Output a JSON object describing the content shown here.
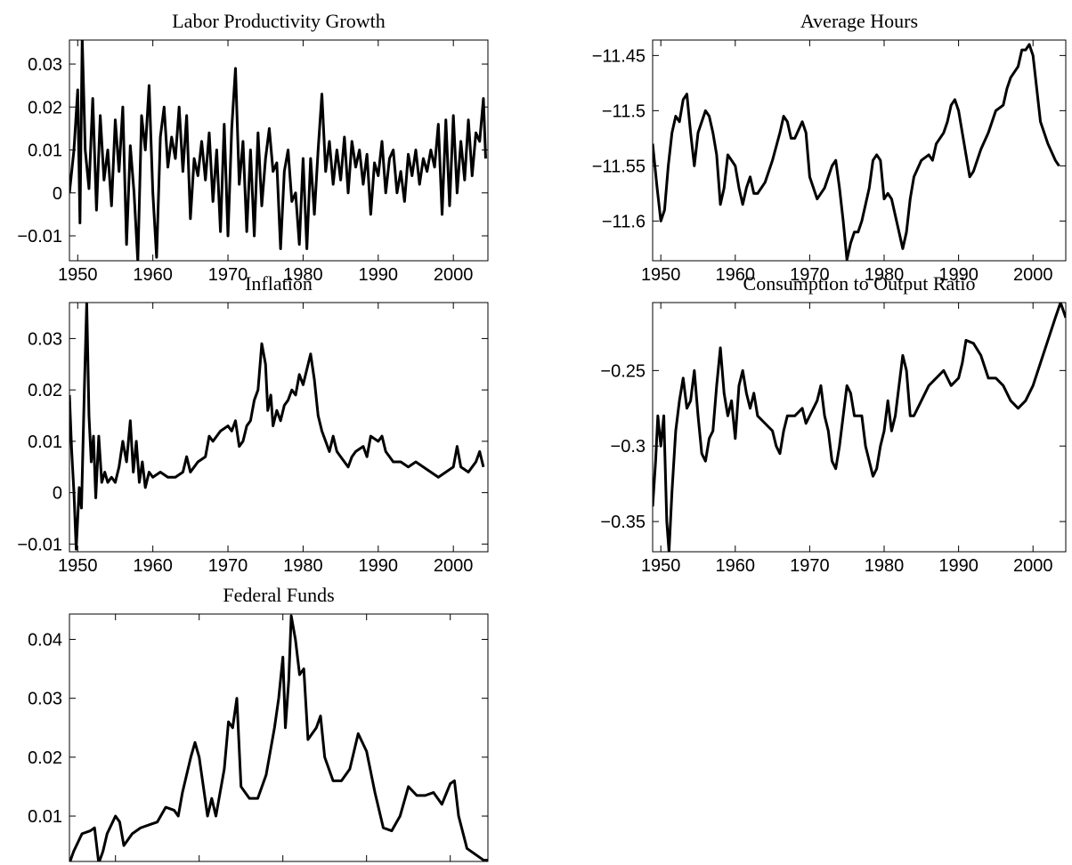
{
  "chart_data": [
    {
      "type": "line",
      "title": "Labor Productivity Growth",
      "color": "#000000",
      "x": [
        1948.9,
        1949.5,
        1950,
        1950.3,
        1950.6,
        1951,
        1951.5,
        1952,
        1952.5,
        1953,
        1953.5,
        1954,
        1954.5,
        1955,
        1955.5,
        1956,
        1956.5,
        1957,
        1957.5,
        1958,
        1958.5,
        1959,
        1959.5,
        1960,
        1960.5,
        1961,
        1961.5,
        1962,
        1962.5,
        1963,
        1963.5,
        1964,
        1964.5,
        1965,
        1965.5,
        1966,
        1966.5,
        1967,
        1967.5,
        1968,
        1968.5,
        1969,
        1969.5,
        1970,
        1970.5,
        1971,
        1971.5,
        1972,
        1972.5,
        1973,
        1973.5,
        1974,
        1974.5,
        1975,
        1975.5,
        1976,
        1976.5,
        1977,
        1977.5,
        1978,
        1978.5,
        1979,
        1979.5,
        1980,
        1980.5,
        1981,
        1981.5,
        1982,
        1982.5,
        1983,
        1983.5,
        1984,
        1984.5,
        1985,
        1985.5,
        1986,
        1986.5,
        1987,
        1987.5,
        1988,
        1988.5,
        1989,
        1989.5,
        1990,
        1990.5,
        1991,
        1991.5,
        1992,
        1992.5,
        1993,
        1993.5,
        1994,
        1994.5,
        1995,
        1995.5,
        1996,
        1996.5,
        1997,
        1997.5,
        1998,
        1998.5,
        1999,
        1999.5,
        2000,
        2000.5,
        2001,
        2001.5,
        2002,
        2002.5,
        2003,
        2003.5,
        2004,
        2004.3
      ],
      "values": [
        0,
        0.01,
        0.024,
        -0.007,
        0.036,
        0.01,
        0.001,
        0.022,
        -0.004,
        0.018,
        0.003,
        0.01,
        -0.003,
        0.017,
        0.005,
        0.02,
        -0.012,
        0.011,
        0,
        -0.016,
        0.018,
        0.01,
        0.025,
        0,
        -0.015,
        0.013,
        0.02,
        0.006,
        0.013,
        0.008,
        0.02,
        0.005,
        0.018,
        -0.006,
        0.008,
        0.004,
        0.012,
        0.003,
        0.014,
        -0.002,
        0.01,
        -0.009,
        0.016,
        -0.01,
        0.015,
        0.029,
        0.002,
        0.012,
        -0.009,
        0.01,
        -0.01,
        0.014,
        -0.003,
        0.008,
        0.015,
        0.005,
        0.007,
        -0.013,
        0.005,
        0.01,
        -0.002,
        0,
        -0.012,
        0.008,
        -0.013,
        0.008,
        -0.005,
        0.01,
        0.023,
        0.005,
        0.012,
        0.002,
        0.01,
        0.003,
        0.013,
        0,
        0.012,
        0.006,
        0.01,
        0.002,
        0.009,
        -0.005,
        0.007,
        0.004,
        0.012,
        0,
        0.008,
        0.01,
        0,
        0.005,
        -0.002,
        0.009,
        0.004,
        0.01,
        0.002,
        0.008,
        0.005,
        0.01,
        0.006,
        0.016,
        -0.005,
        0.017,
        -0.003,
        0.018,
        0,
        0.012,
        0.003,
        0.017,
        0.004,
        0.014,
        0.012,
        0.022,
        0.008
      ],
      "xlim": [
        1948.9,
        2004.6
      ],
      "ylim": [
        -0.0158,
        0.0356
      ],
      "xticks": [
        1950,
        1960,
        1970,
        1980,
        1990,
        2000
      ],
      "yticks": [
        {
          "value": -0.01,
          "label": "−0.01"
        },
        0,
        0.01,
        0.02,
        0.03
      ]
    },
    {
      "type": "line",
      "title": "Average Hours",
      "color": "#000000",
      "x": [
        1948.9,
        1949.5,
        1950,
        1950.5,
        1951,
        1951.5,
        1952,
        1952.5,
        1953,
        1953.5,
        1954,
        1954.5,
        1955,
        1955.5,
        1956,
        1956.5,
        1957,
        1957.5,
        1958,
        1958.5,
        1959,
        1960,
        1960.5,
        1961,
        1961.5,
        1962,
        1962.5,
        1963,
        1964,
        1965,
        1966,
        1966.5,
        1967,
        1967.5,
        1968,
        1969,
        1969.5,
        1970,
        1970.5,
        1971,
        1972,
        1973,
        1973.5,
        1974,
        1974.5,
        1975,
        1975.5,
        1976,
        1976.5,
        1977,
        1978,
        1978.5,
        1979,
        1979.5,
        1980,
        1980.5,
        1981,
        1982,
        1982.5,
        1983,
        1983.5,
        1984,
        1985,
        1986,
        1986.5,
        1987,
        1988,
        1988.5,
        1989,
        1989.5,
        1990,
        1991,
        1991.5,
        1992,
        1993,
        1994,
        1995,
        1996,
        1996.5,
        1997,
        1998,
        1998.5,
        1999,
        1999.5,
        2000,
        2000.5,
        2001,
        2002,
        2003,
        2003.5
      ],
      "values": [
        -11.53,
        -11.57,
        -11.6,
        -11.59,
        -11.55,
        -11.52,
        -11.505,
        -11.51,
        -11.49,
        -11.485,
        -11.52,
        -11.55,
        -11.52,
        -11.51,
        -11.5,
        -11.505,
        -11.52,
        -11.54,
        -11.585,
        -11.57,
        -11.54,
        -11.55,
        -11.57,
        -11.585,
        -11.57,
        -11.56,
        -11.575,
        -11.575,
        -11.565,
        -11.545,
        -11.52,
        -11.505,
        -11.51,
        -11.525,
        -11.525,
        -11.51,
        -11.52,
        -11.56,
        -11.57,
        -11.58,
        -11.57,
        -11.55,
        -11.545,
        -11.57,
        -11.6,
        -11.635,
        -11.62,
        -11.61,
        -11.61,
        -11.6,
        -11.57,
        -11.545,
        -11.54,
        -11.545,
        -11.58,
        -11.575,
        -11.58,
        -11.61,
        -11.625,
        -11.61,
        -11.58,
        -11.56,
        -11.545,
        -11.54,
        -11.545,
        -11.53,
        -11.52,
        -11.51,
        -11.495,
        -11.49,
        -11.5,
        -11.54,
        -11.56,
        -11.555,
        -11.535,
        -11.52,
        -11.5,
        -11.495,
        -11.48,
        -11.47,
        -11.46,
        -11.445,
        -11.445,
        -11.44,
        -11.45,
        -11.48,
        -11.51,
        -11.53,
        -11.545,
        -11.55
      ],
      "xlim": [
        1948.9,
        2004.4
      ],
      "ylim": [
        -11.636,
        -11.436
      ],
      "xticks": [
        1950,
        1960,
        1970,
        1980,
        1990,
        2000
      ],
      "yticks": [
        {
          "value": -11.6,
          "label": "−11.6"
        },
        {
          "value": -11.55,
          "label": "−11.55"
        },
        {
          "value": -11.5,
          "label": "−11.5"
        },
        {
          "value": -11.45,
          "label": "−11.45"
        }
      ]
    },
    {
      "type": "line",
      "title": "Inflation",
      "color": "#000000",
      "x": [
        1948.9,
        1949.2,
        1949.5,
        1949.8,
        1950.2,
        1950.5,
        1950.9,
        1951.2,
        1951.5,
        1951.8,
        1952.1,
        1952.4,
        1952.8,
        1953.2,
        1953.6,
        1954,
        1954.5,
        1955,
        1955.5,
        1956,
        1956.5,
        1957,
        1957.4,
        1957.8,
        1958.2,
        1958.6,
        1959,
        1959.5,
        1960,
        1961,
        1962,
        1963,
        1964,
        1964.5,
        1965,
        1966,
        1967,
        1967.5,
        1968,
        1969,
        1970,
        1970.5,
        1971,
        1971.5,
        1972,
        1972.5,
        1973,
        1973.5,
        1974,
        1974.5,
        1975,
        1975.3,
        1975.7,
        1976,
        1976.5,
        1977,
        1977.5,
        1978,
        1978.5,
        1979,
        1979.5,
        1980,
        1980.5,
        1981,
        1981.5,
        1982,
        1982.5,
        1983,
        1983.5,
        1984,
        1984.5,
        1985,
        1986,
        1986.5,
        1987,
        1988,
        1988.5,
        1989,
        1990,
        1990.5,
        1991,
        1992,
        1993,
        1994,
        1995,
        1996,
        1997,
        1998,
        1999,
        2000,
        2000.5,
        2001,
        2002,
        2003,
        2003.5,
        2004
      ],
      "values": [
        0.019,
        0.008,
        0,
        -0.011,
        0.001,
        -0.003,
        0.021,
        0.037,
        0.015,
        0.006,
        0.011,
        -0.001,
        0.011,
        0.002,
        0.004,
        0.002,
        0.003,
        0.002,
        0.005,
        0.01,
        0.006,
        0.014,
        0.004,
        0.01,
        0.002,
        0.006,
        0.001,
        0.004,
        0.003,
        0.004,
        0.003,
        0.003,
        0.004,
        0.007,
        0.004,
        0.006,
        0.007,
        0.011,
        0.01,
        0.012,
        0.013,
        0.012,
        0.014,
        0.009,
        0.01,
        0.013,
        0.014,
        0.018,
        0.02,
        0.029,
        0.025,
        0.016,
        0.019,
        0.013,
        0.016,
        0.014,
        0.017,
        0.018,
        0.02,
        0.019,
        0.023,
        0.021,
        0.024,
        0.027,
        0.022,
        0.015,
        0.012,
        0.01,
        0.008,
        0.011,
        0.008,
        0.007,
        0.005,
        0.007,
        0.008,
        0.009,
        0.007,
        0.011,
        0.01,
        0.011,
        0.008,
        0.006,
        0.006,
        0.005,
        0.006,
        0.005,
        0.004,
        0.003,
        0.004,
        0.005,
        0.009,
        0.005,
        0.004,
        0.006,
        0.008,
        0.005
      ],
      "xlim": [
        1948.9,
        2004.6
      ],
      "ylim": [
        -0.0115,
        0.037
      ],
      "xticks": [
        1950,
        1960,
        1970,
        1980,
        1990,
        2000
      ],
      "yticks": [
        {
          "value": -0.01,
          "label": "−0.01"
        },
        0,
        0.01,
        0.02,
        0.03
      ]
    },
    {
      "type": "line",
      "title": "Consumption to Output Ratio",
      "color": "#000000",
      "x": [
        1948.9,
        1949.3,
        1949.6,
        1950,
        1950.4,
        1950.8,
        1951.1,
        1951.5,
        1952,
        1952.5,
        1953,
        1953.5,
        1954,
        1954.5,
        1955,
        1955.5,
        1956,
        1956.5,
        1957,
        1957.5,
        1958,
        1958.5,
        1959,
        1959.5,
        1960,
        1960.5,
        1961,
        1961.5,
        1962,
        1962.5,
        1963,
        1964,
        1965,
        1965.5,
        1966,
        1966.5,
        1967,
        1968,
        1969,
        1969.5,
        1970,
        1971,
        1971.5,
        1972,
        1972.5,
        1973,
        1973.5,
        1974,
        1974.5,
        1975,
        1975.5,
        1976,
        1977,
        1977.5,
        1978,
        1978.5,
        1979,
        1979.5,
        1980,
        1980.5,
        1981,
        1981.5,
        1982,
        1982.5,
        1983,
        1983.5,
        1984,
        1985,
        1986,
        1987,
        1988,
        1989,
        1990,
        1990.5,
        1991,
        1992,
        1993,
        1994,
        1995,
        1996,
        1997,
        1998,
        1999,
        2000,
        2001,
        2002,
        2003,
        2003.7,
        2004.4
      ],
      "values": [
        -0.34,
        -0.31,
        -0.28,
        -0.3,
        -0.28,
        -0.35,
        -0.37,
        -0.33,
        -0.29,
        -0.27,
        -0.255,
        -0.275,
        -0.27,
        -0.25,
        -0.28,
        -0.305,
        -0.31,
        -0.295,
        -0.29,
        -0.26,
        -0.235,
        -0.265,
        -0.28,
        -0.27,
        -0.295,
        -0.26,
        -0.25,
        -0.265,
        -0.275,
        -0.265,
        -0.28,
        -0.285,
        -0.29,
        -0.3,
        -0.305,
        -0.29,
        -0.28,
        -0.28,
        -0.275,
        -0.285,
        -0.28,
        -0.27,
        -0.26,
        -0.28,
        -0.29,
        -0.31,
        -0.315,
        -0.3,
        -0.28,
        -0.26,
        -0.265,
        -0.28,
        -0.28,
        -0.3,
        -0.31,
        -0.32,
        -0.315,
        -0.3,
        -0.29,
        -0.27,
        -0.29,
        -0.28,
        -0.26,
        -0.24,
        -0.25,
        -0.28,
        -0.28,
        -0.27,
        -0.26,
        -0.255,
        -0.25,
        -0.26,
        -0.255,
        -0.245,
        -0.23,
        -0.232,
        -0.24,
        -0.255,
        -0.255,
        -0.26,
        -0.27,
        -0.275,
        -0.27,
        -0.26,
        -0.245,
        -0.23,
        -0.215,
        -0.205,
        -0.215
      ],
      "xlim": [
        1948.9,
        2004.4
      ],
      "ylim": [
        -0.37,
        -0.205
      ],
      "xticks": [
        1950,
        1960,
        1970,
        1980,
        1990,
        2000
      ],
      "yticks": [
        {
          "value": -0.35,
          "label": "−0.35"
        },
        {
          "value": -0.3,
          "label": "−0.3"
        },
        {
          "value": -0.25,
          "label": "−0.25"
        }
      ]
    },
    {
      "type": "line",
      "title": "Federal Funds",
      "color": "#000000",
      "x": [
        1954.5,
        1955,
        1956,
        1957,
        1957.5,
        1958,
        1958.5,
        1959,
        1960,
        1960.5,
        1961,
        1962,
        1963,
        1964,
        1965,
        1966,
        1967,
        1967.5,
        1968,
        1969,
        1969.5,
        1970,
        1971,
        1971.5,
        1972,
        1973,
        1973.5,
        1974,
        1974.5,
        1975,
        1976,
        1977,
        1978,
        1979,
        1979.5,
        1980,
        1980.3,
        1980.7,
        1981,
        1981.5,
        1982,
        1982.5,
        1983,
        1984,
        1984.5,
        1985,
        1986,
        1987,
        1988,
        1989,
        1990,
        1991,
        1992,
        1993,
        1994,
        1995,
        1996,
        1997,
        1998,
        1999,
        2000,
        2000.5,
        2001,
        2002,
        2003,
        2004,
        2004.5
      ],
      "values": [
        0.002,
        0.004,
        0.007,
        0.0075,
        0.008,
        0.002,
        0.004,
        0.007,
        0.01,
        0.009,
        0.005,
        0.007,
        0.008,
        0.0085,
        0.009,
        0.0115,
        0.011,
        0.01,
        0.014,
        0.02,
        0.0225,
        0.02,
        0.01,
        0.013,
        0.01,
        0.018,
        0.026,
        0.025,
        0.03,
        0.015,
        0.013,
        0.013,
        0.017,
        0.025,
        0.03,
        0.037,
        0.025,
        0.033,
        0.044,
        0.04,
        0.034,
        0.035,
        0.023,
        0.025,
        0.027,
        0.02,
        0.016,
        0.016,
        0.018,
        0.024,
        0.021,
        0.014,
        0.008,
        0.0075,
        0.01,
        0.015,
        0.0135,
        0.0135,
        0.014,
        0.012,
        0.0155,
        0.016,
        0.01,
        0.0045,
        0.0035,
        0.0025,
        0.0025
      ],
      "xlim": [
        1954.5,
        2004.5
      ],
      "ylim": [
        0.0023,
        0.0443
      ],
      "xticks": [
        1960,
        1970,
        1980,
        1990,
        2000
      ],
      "yticks": [
        0.01,
        0.02,
        0.03,
        0.04
      ]
    }
  ]
}
